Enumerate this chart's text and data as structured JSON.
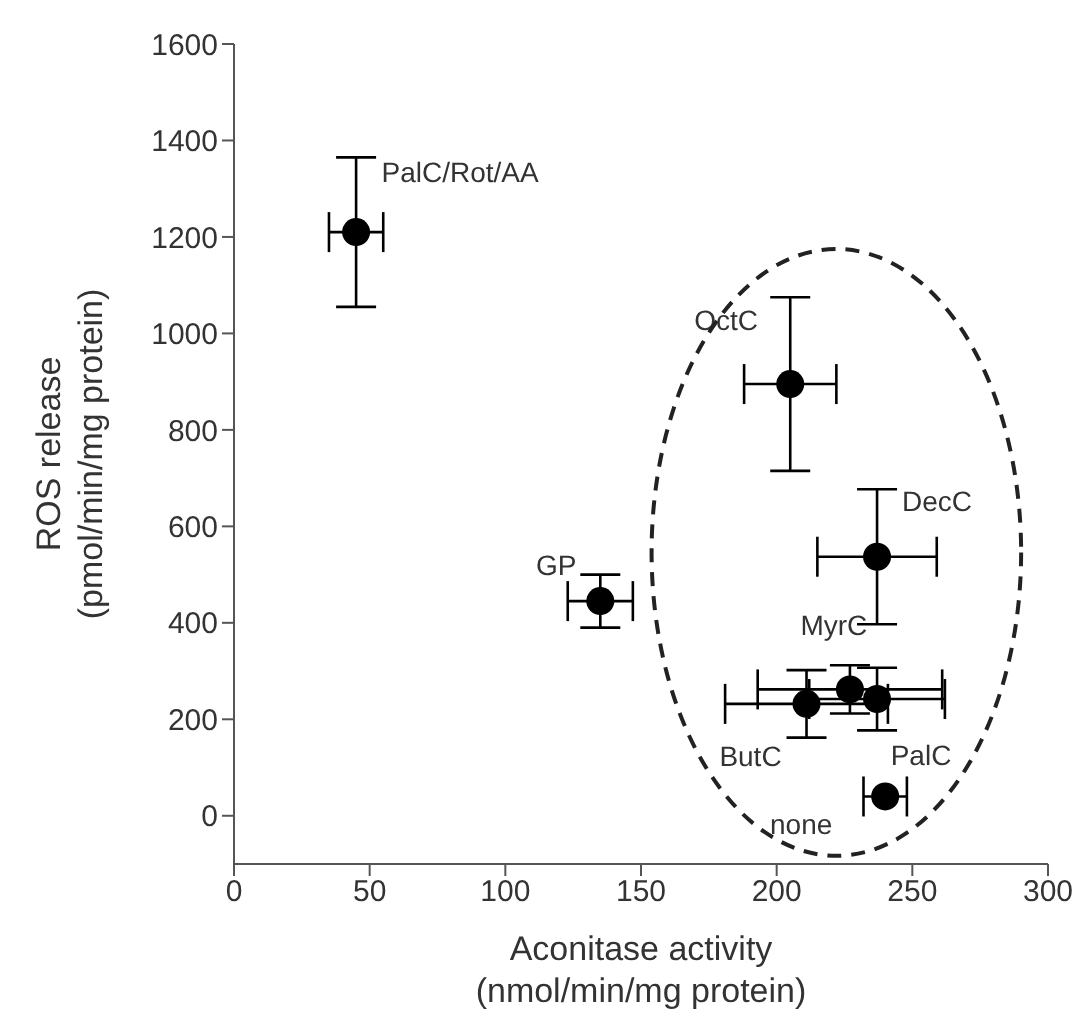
{
  "chart_data": {
    "type": "scatter",
    "xlabel": "Aconitase activity\n(nmol/min/mg protein)",
    "ylabel": "ROS release\n(pmol/min/mg protein)",
    "xlim": [
      0,
      300
    ],
    "xticks": [
      0,
      50,
      100,
      150,
      200,
      250,
      300
    ],
    "ylim": [
      -100,
      1600
    ],
    "yticks": [
      0,
      200,
      400,
      600,
      800,
      1000,
      1200,
      1400,
      1600
    ],
    "grid": false,
    "legend": false,
    "marker": "circle",
    "series": [
      {
        "color": "#000000",
        "x": [
          45,
          205,
          237,
          135,
          227,
          211,
          237,
          240
        ],
        "values": [
          1210,
          895,
          537,
          445,
          262,
          232,
          242,
          40
        ],
        "errors": [
          155,
          180,
          140,
          55,
          50,
          70,
          65,
          null
        ],
        "xerrors": [
          10,
          17,
          22,
          12,
          34,
          30,
          25,
          8
        ]
      }
    ],
    "annotations": [
      {
        "text": "PalC/Rot/AA",
        "x": 45,
        "y": 1210
      },
      {
        "text": "OctC",
        "x": 205,
        "y": 895
      },
      {
        "text": "DecC",
        "x": 237,
        "y": 537
      },
      {
        "text": "GP",
        "x": 135,
        "y": 445
      },
      {
        "text": "MyrC",
        "x": 227,
        "y": 262
      },
      {
        "text": "ButC",
        "x": 211,
        "y": 232
      },
      {
        "text": "PalC",
        "x": 237,
        "y": 242
      },
      {
        "text": "none",
        "x": 240,
        "y": 40
      }
    ]
  }
}
